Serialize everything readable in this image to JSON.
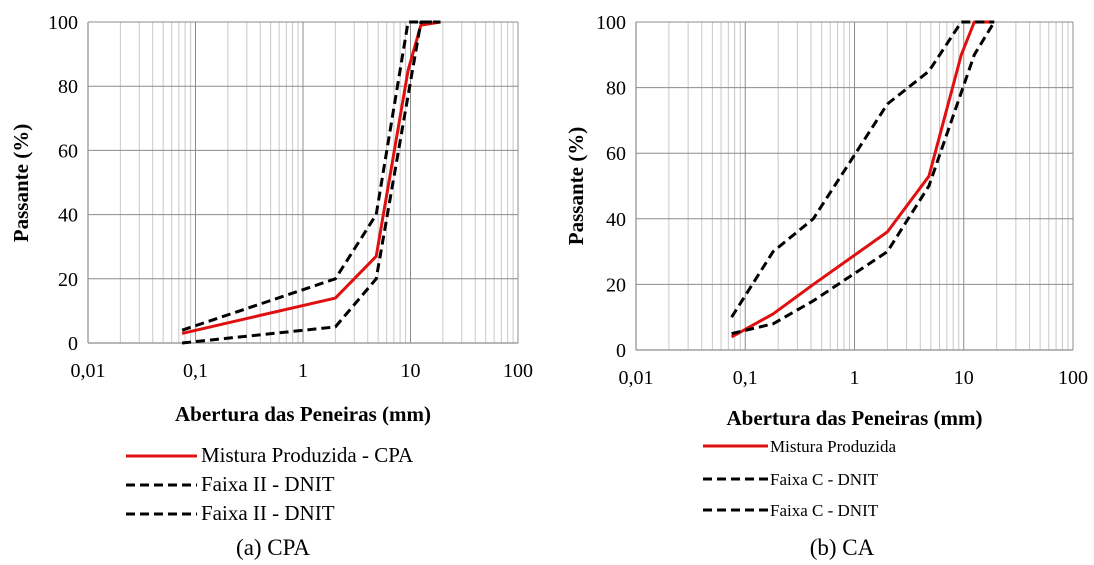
{
  "chart_data": [
    {
      "type": "line",
      "title": "",
      "caption": "(a) CPA",
      "xlabel": "Abertura das Peneiras (mm)",
      "ylabel": "Passante (%)",
      "xscale": "log",
      "xlim": [
        0.01,
        100
      ],
      "ylim": [
        0,
        100
      ],
      "xtick_labels": [
        "0,01",
        "0,1",
        "1",
        "10",
        "100"
      ],
      "ytick_labels": [
        "0",
        "20",
        "40",
        "60",
        "80",
        "100"
      ],
      "grid": true,
      "legend_position": "bottom",
      "series": [
        {
          "name": "Mistura Produzida - CPA",
          "color": "#e01010",
          "dash": "solid",
          "x": [
            0.075,
            2,
            4.8,
            9.5,
            12.5,
            19
          ],
          "y": [
            3,
            14,
            27,
            85,
            99,
            100
          ]
        },
        {
          "name": "Faixa II - DNIT",
          "color": "#000000",
          "dash": "dashed",
          "x": [
            0.075,
            2,
            4.8,
            9.5,
            19
          ],
          "y": [
            4,
            20,
            40,
            100,
            100
          ]
        },
        {
          "name": "Faixa II - DNIT",
          "color": "#000000",
          "dash": "dashed",
          "x": [
            0.075,
            2,
            4.8,
            12.5,
            19
          ],
          "y": [
            0,
            5,
            20,
            100,
            100
          ]
        }
      ]
    },
    {
      "type": "line",
      "title": "",
      "caption": "(b) CA",
      "xlabel": "Abertura das Peneiras (mm)",
      "ylabel": "Passante (%)",
      "xscale": "log",
      "xlim": [
        0.01,
        100
      ],
      "ylim": [
        0,
        100
      ],
      "xtick_labels": [
        "0,01",
        "0,1",
        "1",
        "10",
        "100"
      ],
      "ytick_labels": [
        "0",
        "20",
        "40",
        "60",
        "80",
        "100"
      ],
      "grid": true,
      "legend_position": "bottom",
      "series": [
        {
          "name": "Mistura Produzida",
          "color": "#e01010",
          "dash": "solid",
          "x": [
            0.075,
            0.18,
            0.42,
            2,
            4.8,
            9.5,
            12.5,
            19
          ],
          "y": [
            4,
            11,
            20,
            36,
            53,
            90,
            100,
            100
          ]
        },
        {
          "name": "Faixa C - DNIT",
          "color": "#000000",
          "dash": "dashed",
          "x": [
            0.075,
            0.18,
            0.42,
            2,
            4.8,
            9.5,
            19
          ],
          "y": [
            10,
            30,
            40,
            75,
            85,
            100,
            100
          ]
        },
        {
          "name": "Faixa C - DNIT",
          "color": "#000000",
          "dash": "dashed",
          "x": [
            0.075,
            0.18,
            0.42,
            2,
            4.8,
            12.5,
            19
          ],
          "y": [
            5,
            8,
            15,
            30,
            50,
            90,
            100
          ]
        }
      ]
    }
  ]
}
